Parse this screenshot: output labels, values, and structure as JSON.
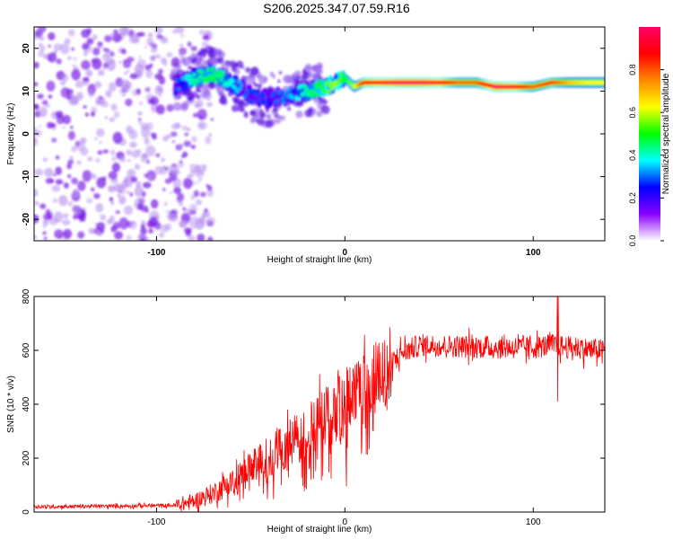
{
  "title": "S206.2025.347.07.59.R16",
  "chart_data": [
    {
      "type": "heatmap",
      "name": "spectrogram",
      "xlabel": "Height of straight line (km)",
      "ylabel": "Frequency (Hz)",
      "xlim": [
        -165,
        138
      ],
      "ylim": [
        -25,
        25
      ],
      "xticks": [
        -100,
        0,
        100
      ],
      "yticks": [
        -20,
        -10,
        0,
        10,
        20
      ],
      "colorbar": {
        "label": "Normalized spectral amplitude",
        "range": [
          0,
          1
        ],
        "ticks": [
          "0.0",
          "0.2",
          "0.4",
          "0.6",
          "0.8"
        ],
        "colors": [
          "#ffffff",
          "#8800ff",
          "#0000ff",
          "#00ffff",
          "#00ff00",
          "#ffff00",
          "#ff8800",
          "#ff0000",
          "#ff0066"
        ]
      },
      "ridge": {
        "x": [
          -90,
          -80,
          -70,
          -60,
          -50,
          -40,
          -30,
          -20,
          -10,
          -5,
          0,
          5,
          10,
          20,
          30,
          40,
          50,
          60,
          70,
          80,
          90,
          100,
          110,
          120,
          130,
          138
        ],
        "y": [
          11,
          13,
          14,
          12,
          9,
          8,
          9,
          10,
          11,
          12,
          13,
          11,
          12,
          12,
          12,
          12,
          12,
          12,
          12,
          11,
          11,
          11,
          12,
          12,
          12,
          12
        ],
        "amplitude": [
          0.2,
          0.35,
          0.4,
          0.3,
          0.2,
          0.2,
          0.25,
          0.35,
          0.45,
          0.5,
          0.4,
          0.5,
          0.8,
          0.85,
          0.9,
          0.9,
          0.85,
          0.7,
          0.7,
          0.9,
          0.85,
          0.7,
          0.75,
          0.6,
          0.55,
          0.55
        ]
      },
      "noise_region": {
        "x": [
          -165,
          -80
        ],
        "y": [
          -25,
          25
        ],
        "amplitude": [
          0.05,
          0.2
        ]
      }
    },
    {
      "type": "line",
      "name": "snr",
      "xlabel": "Height of straight line (km)",
      "ylabel": "SNR (10 * v/v)",
      "xlim": [
        -165,
        138
      ],
      "ylim": [
        0,
        800
      ],
      "xticks": [
        -100,
        0,
        100
      ],
      "yticks": [
        0,
        200,
        400,
        600,
        800
      ],
      "color": "#ff0000",
      "trend": {
        "x": [
          -165,
          -120,
          -90,
          -80,
          -70,
          -60,
          -50,
          -40,
          -30,
          -20,
          -10,
          0,
          10,
          20,
          30,
          40,
          60,
          80,
          100,
          110,
          120,
          138
        ],
        "y": [
          20,
          22,
          25,
          40,
          70,
          110,
          160,
          210,
          250,
          300,
          350,
          400,
          450,
          520,
          590,
          620,
          615,
          610,
          610,
          620,
          610,
          600
        ]
      },
      "notable_values": {
        "peak": 810,
        "peak_x": 113,
        "dip": 410,
        "dip_x": 113
      }
    }
  ]
}
